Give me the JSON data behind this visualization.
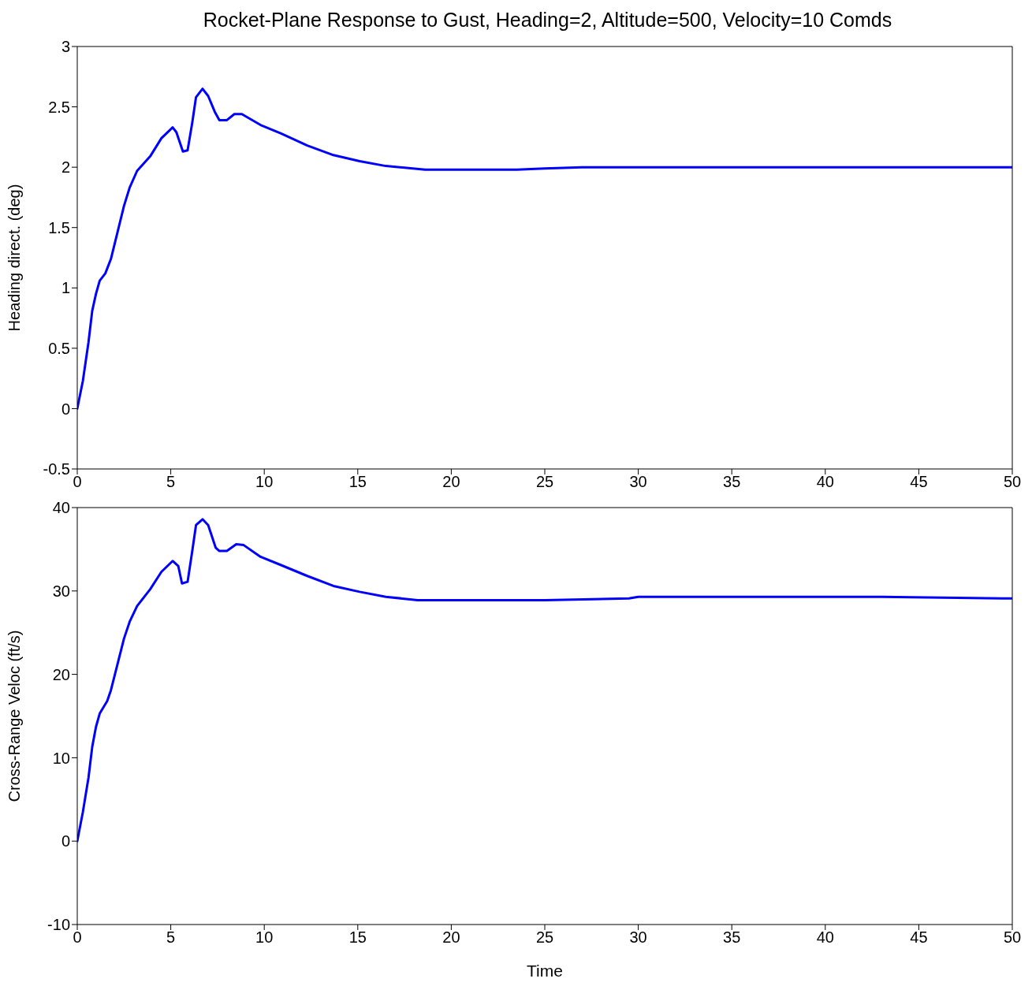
{
  "chart_data": [
    {
      "type": "line",
      "title": "Rocket-Plane Response to Gust, Heading=2, Altitude=500, Velocity=10 Comds",
      "ylabel": "Heading direct. (deg)",
      "xlim": [
        0,
        50
      ],
      "xticks": [
        0,
        5,
        10,
        15,
        20,
        25,
        30,
        35,
        40,
        45,
        50
      ],
      "ylim": [
        -0.5,
        3
      ],
      "yticks": [
        -0.5,
        0,
        0.5,
        1,
        1.5,
        2,
        2.5,
        3
      ],
      "grid": false,
      "marker": "none",
      "line_style": "solid",
      "series": [
        {
          "color": "#0000ff",
          "x": [
            0,
            0.3,
            0.6,
            0.8,
            1.0,
            1.2,
            1.5,
            1.8,
            2.15,
            2.5,
            2.8,
            3.2,
            3.9,
            4.5,
            5.1,
            5.3,
            5.65,
            5.9,
            6.15,
            6.35,
            6.7,
            7.0,
            7.35,
            7.6,
            8.0,
            8.4,
            8.8,
            9.8,
            10.9,
            12.3,
            13.7,
            15.1,
            16.5,
            18.6,
            23.5,
            25,
            27,
            50
          ],
          "values": [
            0,
            0.23,
            0.55,
            0.81,
            0.95,
            1.06,
            1.12,
            1.24,
            1.46,
            1.68,
            1.83,
            1.97,
            2.09,
            2.24,
            2.33,
            2.29,
            2.13,
            2.14,
            2.37,
            2.58,
            2.65,
            2.59,
            2.46,
            2.39,
            2.39,
            2.44,
            2.44,
            2.35,
            2.28,
            2.18,
            2.1,
            2.05,
            2.01,
            1.98,
            1.98,
            1.99,
            2.0,
            2.0
          ]
        }
      ]
    },
    {
      "type": "line",
      "xlabel": "Time",
      "ylabel": "Cross-Range Veloc (ft/s)",
      "xlim": [
        0,
        50
      ],
      "xticks": [
        0,
        5,
        10,
        15,
        20,
        25,
        30,
        35,
        40,
        45,
        50
      ],
      "ylim": [
        -10,
        40
      ],
      "yticks": [
        -10,
        0,
        10,
        20,
        30,
        40
      ],
      "grid": false,
      "marker": "none",
      "line_style": "solid",
      "series": [
        {
          "color": "#0000ff",
          "x": [
            0,
            0.3,
            0.6,
            0.8,
            1.0,
            1.2,
            1.6,
            1.8,
            2.15,
            2.5,
            2.8,
            3.2,
            3.9,
            4.5,
            5.1,
            5.4,
            5.6,
            5.9,
            6.15,
            6.35,
            6.7,
            7.0,
            7.4,
            7.6,
            8.0,
            8.5,
            8.9,
            9.8,
            10.9,
            12.3,
            13.7,
            15.1,
            16.5,
            18.2,
            25,
            29.5,
            30,
            43,
            50
          ],
          "values": [
            0,
            3.5,
            7.6,
            11.3,
            13.7,
            15.3,
            16.8,
            18.1,
            21.2,
            24.3,
            26.3,
            28.2,
            30.2,
            32.3,
            33.6,
            33.0,
            30.9,
            31.1,
            34.8,
            37.9,
            38.6,
            37.9,
            35.2,
            34.8,
            34.8,
            35.6,
            35.5,
            34.1,
            33.1,
            31.8,
            30.6,
            29.9,
            29.3,
            28.9,
            28.9,
            29.1,
            29.3,
            29.3,
            29.1
          ]
        }
      ]
    }
  ]
}
